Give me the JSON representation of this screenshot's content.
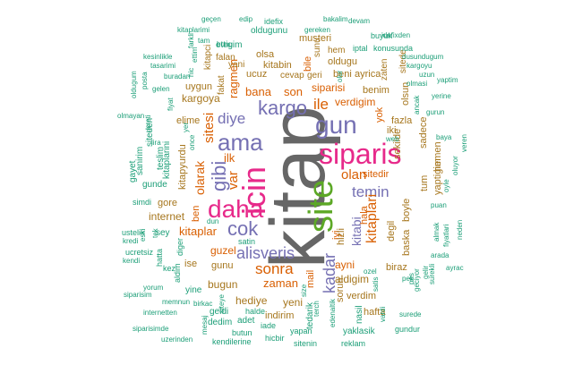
{
  "colors": {
    "gray": "#666666",
    "green": "#5ca826",
    "pink": "#e7298a",
    "purple": "#7570b3",
    "orange": "#d95f02",
    "teal": "#1b9e77",
    "olive": "#66a61e",
    "brown": "#a6761d"
  },
  "words": [
    {
      "text": "kitap",
      "color": "gray",
      "vertical": true
    },
    {
      "text": "site",
      "color": "green",
      "vertical": true
    },
    {
      "text": "siparis",
      "color": "pink",
      "vertical": false
    },
    {
      "text": "icin",
      "color": "pink",
      "vertical": true
    },
    {
      "text": "daha",
      "color": "pink",
      "vertical": false
    },
    {
      "text": "gun",
      "color": "purple",
      "vertical": false
    },
    {
      "text": "ama",
      "color": "purple",
      "vertical": false
    },
    {
      "text": "cok",
      "color": "purple",
      "vertical": false
    },
    {
      "text": "kargo",
      "color": "purple",
      "vertical": false
    },
    {
      "text": "alisveris",
      "color": "purple",
      "vertical": false
    },
    {
      "text": "gibi",
      "color": "purple",
      "vertical": true
    },
    {
      "text": "diye",
      "color": "purple",
      "vertical": false
    },
    {
      "text": "temin",
      "color": "purple",
      "vertical": false
    },
    {
      "text": "kadar",
      "color": "purple",
      "vertical": true
    },
    {
      "text": "ile",
      "color": "orange",
      "vertical": false
    },
    {
      "text": "sonra",
      "color": "orange",
      "vertical": false
    },
    {
      "text": "olan",
      "color": "orange",
      "vertical": false
    },
    {
      "text": "kitaplari",
      "color": "orange",
      "vertical": true
    },
    {
      "text": "olarak",
      "color": "orange",
      "vertical": true
    },
    {
      "text": "var",
      "color": "orange",
      "vertical": true
    },
    {
      "text": "sitesi",
      "color": "orange",
      "vertical": true
    },
    {
      "text": "kitabi",
      "color": "purple",
      "vertical": true
    },
    {
      "text": "zaman",
      "color": "orange",
      "vertical": false
    },
    {
      "text": "bana",
      "color": "orange",
      "vertical": false
    },
    {
      "text": "son",
      "color": "orange",
      "vertical": false
    },
    {
      "text": "siparisi",
      "color": "orange",
      "vertical": false
    },
    {
      "text": "verdigim",
      "color": "orange",
      "vertical": false
    },
    {
      "text": "ragmen",
      "color": "orange",
      "vertical": true
    },
    {
      "text": "ilk",
      "color": "orange",
      "vertical": false
    },
    {
      "text": "kitaplar",
      "color": "orange",
      "vertical": false
    },
    {
      "text": "guzel",
      "color": "orange",
      "vertical": false
    },
    {
      "text": "ayni",
      "color": "orange",
      "vertical": false
    },
    {
      "text": "sitedir",
      "color": "orange",
      "vertical": false
    },
    {
      "text": "bile",
      "color": "orange",
      "vertical": true
    },
    {
      "text": "mail",
      "color": "orange",
      "vertical": true
    },
    {
      "text": "yok",
      "color": "orange",
      "vertical": true
    },
    {
      "text": "iyi",
      "color": "orange",
      "vertical": true
    },
    {
      "text": "hala",
      "color": "orange",
      "vertical": true
    },
    {
      "text": "ben",
      "color": "orange",
      "vertical": true
    },
    {
      "text": "kargoya",
      "color": "brown",
      "vertical": false
    },
    {
      "text": "iki",
      "color": "brown",
      "vertical": false
    },
    {
      "text": "gunu",
      "color": "brown",
      "vertical": false
    },
    {
      "text": "bugun",
      "color": "brown",
      "vertical": false
    },
    {
      "text": "hediye",
      "color": "brown",
      "vertical": false
    },
    {
      "text": "yeni",
      "color": "brown",
      "vertical": false
    },
    {
      "text": "indirim",
      "color": "brown",
      "vertical": false
    },
    {
      "text": "aldigim",
      "color": "brown",
      "vertical": false
    },
    {
      "text": "kitabin",
      "color": "brown",
      "vertical": false
    },
    {
      "text": "oldugu",
      "color": "brown",
      "vertical": false
    },
    {
      "text": "beni",
      "color": "brown",
      "vertical": false
    },
    {
      "text": "benim",
      "color": "brown",
      "vertical": false
    },
    {
      "text": "ayrica",
      "color": "brown",
      "vertical": false
    },
    {
      "text": "ucuz",
      "color": "brown",
      "vertical": false
    },
    {
      "text": "internet",
      "color": "brown",
      "vertical": false
    },
    {
      "text": "gore",
      "color": "brown",
      "vertical": false
    },
    {
      "text": "elime",
      "color": "brown",
      "vertical": false
    },
    {
      "text": "ise",
      "color": "brown",
      "vertical": false
    },
    {
      "text": "fazla",
      "color": "brown",
      "vertical": false
    },
    {
      "text": "degil",
      "color": "brown",
      "vertical": true
    },
    {
      "text": "baska",
      "color": "brown",
      "vertical": true
    },
    {
      "text": "biraz",
      "color": "brown",
      "vertical": false
    },
    {
      "text": "hafta",
      "color": "brown",
      "vertical": false
    },
    {
      "text": "verdim",
      "color": "brown",
      "vertical": false
    },
    {
      "text": "sorun",
      "color": "brown",
      "vertical": true
    },
    {
      "text": "tum",
      "color": "brown",
      "vertical": true
    },
    {
      "text": "hemen",
      "color": "brown",
      "vertical": true
    },
    {
      "text": "sadece",
      "color": "brown",
      "vertical": true
    },
    {
      "text": "yaptigim",
      "color": "brown",
      "vertical": true
    },
    {
      "text": "hizli",
      "color": "brown",
      "vertical": true
    },
    {
      "text": "boyle",
      "color": "brown",
      "vertical": true
    },
    {
      "text": "sekilde",
      "color": "brown",
      "vertical": true
    },
    {
      "text": "kitapyurdu",
      "color": "brown",
      "vertical": true
    },
    {
      "text": "kitapci",
      "color": "brown",
      "vertical": true
    },
    {
      "text": "fakat",
      "color": "brown",
      "vertical": true
    },
    {
      "text": "uygun",
      "color": "brown",
      "vertical": false
    },
    {
      "text": "yani",
      "color": "brown",
      "vertical": false
    },
    {
      "text": "falan",
      "color": "brown",
      "vertical": false
    },
    {
      "text": "olsa",
      "color": "brown",
      "vertical": false
    },
    {
      "text": "musteri",
      "color": "brown",
      "vertical": false
    },
    {
      "text": "olsun",
      "color": "brown",
      "vertical": true
    },
    {
      "text": "zaten",
      "color": "brown",
      "vertical": true
    },
    {
      "text": "cevap",
      "color": "brown",
      "vertical": false
    },
    {
      "text": "geri",
      "color": "brown",
      "vertical": false
    },
    {
      "text": "hem",
      "color": "brown",
      "vertical": false
    },
    {
      "text": "sitede",
      "color": "brown",
      "vertical": true
    },
    {
      "text": "sunu",
      "color": "brown",
      "vertical": true
    },
    {
      "text": "ettigim",
      "color": "teal",
      "vertical": false
    },
    {
      "text": "oldugunu",
      "color": "teal",
      "vertical": false
    },
    {
      "text": "idefix",
      "color": "teal",
      "vertical": false
    },
    {
      "text": "dedim",
      "color": "teal",
      "vertical": false
    },
    {
      "text": "adet",
      "color": "teal",
      "vertical": false
    },
    {
      "text": "geldi",
      "color": "teal",
      "vertical": false
    },
    {
      "text": "yine",
      "color": "teal",
      "vertical": false
    },
    {
      "text": "tedarik",
      "color": "teal",
      "vertical": true
    },
    {
      "text": "nasil",
      "color": "teal",
      "vertical": true
    },
    {
      "text": "kitaplarini",
      "color": "teal",
      "vertical": true
    },
    {
      "text": "teslim",
      "color": "teal",
      "vertical": true
    },
    {
      "text": "siteden",
      "color": "teal",
      "vertical": true
    },
    {
      "text": "gunde",
      "color": "teal",
      "vertical": false
    },
    {
      "text": "sanirim",
      "color": "teal",
      "vertical": true
    },
    {
      "text": "gayet",
      "color": "teal",
      "vertical": true
    },
    {
      "text": "simdi",
      "color": "teal",
      "vertical": false
    },
    {
      "text": "sey",
      "color": "teal",
      "vertical": false
    },
    {
      "text": "ustelik",
      "color": "teal",
      "vertical": false
    },
    {
      "text": "kredi",
      "color": "teal",
      "vertical": false
    },
    {
      "text": "ucretsiz",
      "color": "teal",
      "vertical": false
    },
    {
      "text": "kendi",
      "color": "teal",
      "vertical": false
    },
    {
      "text": "eski",
      "color": "teal",
      "vertical": true
    },
    {
      "text": "hatta",
      "color": "teal",
      "vertical": true
    },
    {
      "text": "diger",
      "color": "teal",
      "vertical": true
    },
    {
      "text": "aldim",
      "color": "teal",
      "vertical": true
    },
    {
      "text": "kez",
      "color": "teal",
      "vertical": false
    },
    {
      "text": "yorum",
      "color": "teal",
      "vertical": false
    },
    {
      "text": "siparisim",
      "color": "teal",
      "vertical": false
    },
    {
      "text": "memnun",
      "color": "teal",
      "vertical": false
    },
    {
      "text": "birkac",
      "color": "teal",
      "vertical": false
    },
    {
      "text": "siparisimde",
      "color": "teal",
      "vertical": false
    },
    {
      "text": "internetten",
      "color": "teal",
      "vertical": false
    },
    {
      "text": "uzerinden",
      "color": "teal",
      "vertical": false
    },
    {
      "text": "mesaj",
      "color": "teal",
      "vertical": true
    },
    {
      "text": "kendilerine",
      "color": "teal",
      "vertical": false
    },
    {
      "text": "hicbir",
      "color": "teal",
      "vertical": false
    },
    {
      "text": "butun",
      "color": "teal",
      "vertical": false
    },
    {
      "text": "iade",
      "color": "teal",
      "vertical": false
    },
    {
      "text": "sitenin",
      "color": "teal",
      "vertical": false
    },
    {
      "text": "yapan",
      "color": "teal",
      "vertical": false
    },
    {
      "text": "reklam",
      "color": "teal",
      "vertical": false
    },
    {
      "text": "halde",
      "color": "teal",
      "vertical": false
    },
    {
      "text": "yaklasik",
      "color": "teal",
      "vertical": false
    },
    {
      "text": "gundur",
      "color": "teal",
      "vertical": false
    },
    {
      "text": "surede",
      "color": "teal",
      "vertical": false
    },
    {
      "text": "arada",
      "color": "teal",
      "vertical": false
    },
    {
      "text": "ayrac",
      "color": "teal",
      "vertical": false
    },
    {
      "text": "neden",
      "color": "teal",
      "vertical": true
    },
    {
      "text": "fiyatlari",
      "color": "teal",
      "vertical": true
    },
    {
      "text": "almak",
      "color": "teal",
      "vertical": true
    },
    {
      "text": "puan",
      "color": "teal",
      "vertical": false
    },
    {
      "text": "oyle",
      "color": "teal",
      "vertical": true
    },
    {
      "text": "oluyor",
      "color": "teal",
      "vertical": true
    },
    {
      "text": "veren",
      "color": "teal",
      "vertical": true
    },
    {
      "text": "surekli",
      "color": "teal",
      "vertical": true
    },
    {
      "text": "gelir",
      "color": "teal",
      "vertical": true
    },
    {
      "text": "baya",
      "color": "teal",
      "vertical": false
    },
    {
      "text": "geciyor",
      "color": "teal",
      "vertical": true
    },
    {
      "text": "yerine",
      "color": "teal",
      "vertical": false
    },
    {
      "text": "yaptim",
      "color": "teal",
      "vertical": false
    },
    {
      "text": "dusundugum",
      "color": "teal",
      "vertical": false
    },
    {
      "text": "kargoyu",
      "color": "teal",
      "vertical": false
    },
    {
      "text": "uzun",
      "color": "teal",
      "vertical": false
    },
    {
      "text": "gurun",
      "color": "teal",
      "vertical": false
    },
    {
      "text": "ancak",
      "color": "teal",
      "vertical": true
    },
    {
      "text": "olmasi",
      "color": "teal",
      "vertical": false
    },
    {
      "text": "iptal",
      "color": "teal",
      "vertical": false
    },
    {
      "text": "konusunda",
      "color": "teal",
      "vertical": false
    },
    {
      "text": "buyuk",
      "color": "teal",
      "vertical": false
    },
    {
      "text": "idefixden",
      "color": "teal",
      "vertical": false
    },
    {
      "text": "bakalim",
      "color": "teal",
      "vertical": false
    },
    {
      "text": "devam",
      "color": "teal",
      "vertical": false
    },
    {
      "text": "gereken",
      "color": "teal",
      "vertical": false
    },
    {
      "text": "geçen",
      "color": "teal",
      "vertical": false
    },
    {
      "text": "edip",
      "color": "teal",
      "vertical": false
    },
    {
      "text": "kitaplarimi",
      "color": "teal",
      "vertical": false
    },
    {
      "text": "tam",
      "color": "teal",
      "vertical": false
    },
    {
      "text": "bunu",
      "color": "teal",
      "vertical": false
    },
    {
      "text": "kesinlikle",
      "color": "teal",
      "vertical": false
    },
    {
      "text": "tasarimi",
      "color": "teal",
      "vertical": false
    },
    {
      "text": "buradan",
      "color": "teal",
      "vertical": false
    },
    {
      "text": "gelen",
      "color": "teal",
      "vertical": false
    },
    {
      "text": "fiyat",
      "color": "teal",
      "vertical": true
    },
    {
      "text": "oldugum",
      "color": "teal",
      "vertical": true
    },
    {
      "text": "posta",
      "color": "teal",
      "vertical": true
    },
    {
      "text": "olmayan",
      "color": "teal",
      "vertical": false
    },
    {
      "text": "ucreti",
      "color": "teal",
      "vertical": true
    },
    {
      "text": "lira",
      "color": "teal",
      "vertical": false
    },
    {
      "text": "web",
      "color": "teal",
      "vertical": false
    },
    {
      "text": "ozel",
      "color": "teal",
      "vertical": false
    },
    {
      "text": "pek",
      "color": "teal",
      "vertical": false
    },
    {
      "text": "satis",
      "color": "teal",
      "vertical": true
    },
    {
      "text": "terch",
      "color": "teal",
      "vertical": true
    },
    {
      "text": "edenaltik",
      "color": "teal",
      "vertical": true
    },
    {
      "text": "vardi",
      "color": "teal",
      "vertical": true
    },
    {
      "text": "size",
      "color": "teal",
      "vertical": true
    },
    {
      "text": "siteye",
      "color": "teal",
      "vertical": true
    },
    {
      "text": "satin",
      "color": "teal",
      "vertical": false
    },
    {
      "text": "dun",
      "color": "teal",
      "vertical": false
    },
    {
      "text": "hic",
      "color": "teal",
      "vertical": true
    },
    {
      "text": "ettim",
      "color": "teal",
      "vertical": true
    },
    {
      "text": "farkli",
      "color": "teal",
      "vertical": true
    },
    {
      "text": "olur",
      "color": "teal",
      "vertical": true
    },
    {
      "text": "yer",
      "color": "teal",
      "vertical": true
    },
    {
      "text": "tek",
      "color": "teal",
      "vertical": true
    },
    {
      "text": "once",
      "color": "teal",
      "vertical": true
    },
    {
      "text": "pes",
      "color": "teal",
      "vertical": true
    }
  ]
}
